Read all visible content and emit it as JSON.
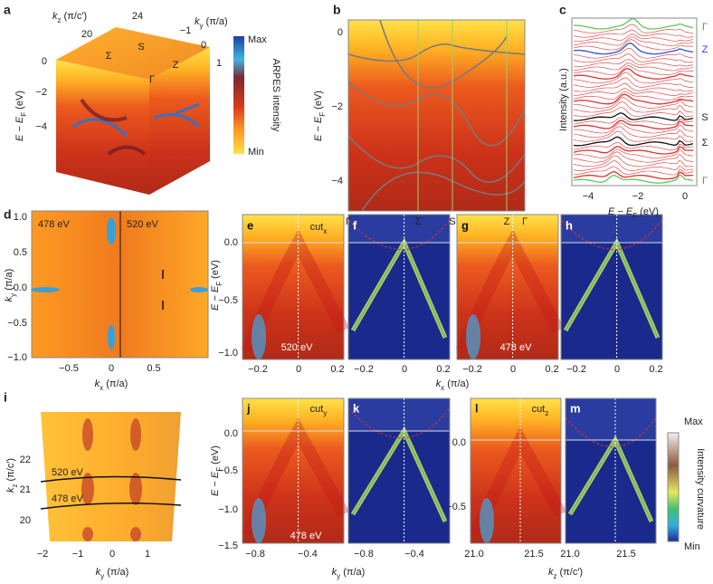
{
  "a": {
    "label": "a",
    "kz": [
      "k",
      "z",
      " (π/c′)"
    ],
    "kz_ticks": [
      "20",
      "24"
    ],
    "ky": [
      "k",
      "y",
      " (π/a)"
    ],
    "ky_ticks": [
      "−1",
      "0",
      "1"
    ],
    "energy": [
      "E − E",
      "F",
      " (eV)"
    ],
    "energy_ticks": [
      "0",
      "−2",
      "−4"
    ],
    "points": [
      "Σ",
      "S",
      "Z",
      "Γ"
    ],
    "colorbar": {
      "max": "Max",
      "min": "Min",
      "title": "ARPES intensity"
    }
  },
  "b": {
    "label": "b",
    "energy": [
      "E − E",
      "F",
      " (eV)"
    ],
    "energy_ticks": [
      "0",
      "−2",
      "−4"
    ],
    "path": [
      "Γ",
      "Σ",
      "S",
      "Z",
      "Γ"
    ]
  },
  "c": {
    "label": "c",
    "ylabel": "Intensity (a.u.)",
    "x_ticks": [
      "−4",
      "−2",
      "0"
    ],
    "energy": [
      "E − E",
      "F",
      " (eV)"
    ],
    "curves": [
      "Γ",
      "Z",
      "S",
      "Σ",
      "Γ"
    ]
  },
  "d": {
    "label": "d",
    "energies": [
      "478 eV",
      "520 eV"
    ],
    "ky": [
      "k",
      "y",
      " (π/a)"
    ],
    "ky_ticks": [
      "1.0",
      "0.5",
      "0.0",
      "−0.5",
      "−1.0"
    ],
    "kx": [
      "k",
      "x",
      " (π/a)"
    ],
    "kx_ticks": [
      "−0.5",
      "0",
      "0.5"
    ]
  },
  "efgh": {
    "labels": [
      "e",
      "f",
      "g",
      "h"
    ],
    "cut": [
      "cut",
      "x"
    ],
    "energies": [
      "520 eV",
      "478 eV"
    ],
    "energy": [
      "E − E",
      "F",
      " (eV)"
    ],
    "energy_ticks": [
      "0.0",
      "−0.5",
      "−1.0"
    ],
    "kx_ticks": [
      "−0.2",
      "0",
      "0.2"
    ],
    "kx": [
      "k",
      "x",
      " (π/a)"
    ]
  },
  "i": {
    "label": "i",
    "kz": [
      "k",
      "z",
      " (π/c′)"
    ],
    "kz_ticks": [
      "22",
      "21",
      "20"
    ],
    "ky": [
      "k",
      "y",
      " (π/a)"
    ],
    "ky_ticks": [
      "−2",
      "−1",
      "0",
      "1"
    ],
    "energies": [
      "520 eV",
      "478 eV"
    ]
  },
  "jk": {
    "labels": [
      "j",
      "k"
    ],
    "cut": [
      "cut",
      "y"
    ],
    "energy_label": "478 eV",
    "energy": [
      "E − E",
      "F",
      " (eV)"
    ],
    "energy_ticks": [
      "0.0",
      "−0.5",
      "−1.0",
      "−1.5"
    ],
    "ky_ticks": [
      "−0.8",
      "−0.4"
    ],
    "ky": [
      "k",
      "y",
      " (π/a)"
    ]
  },
  "lm": {
    "labels": [
      "l",
      "m"
    ],
    "cut": [
      "cut",
      "z"
    ],
    "energy_ticks": [
      "0.0",
      "−0.5"
    ],
    "kz_ticks": [
      "21.0",
      "21.5"
    ],
    "kz": [
      "k",
      "z",
      " (π/c′)"
    ],
    "colorbar": {
      "max": "Max",
      "min": "Min",
      "title": "Intensity curvature"
    }
  }
}
